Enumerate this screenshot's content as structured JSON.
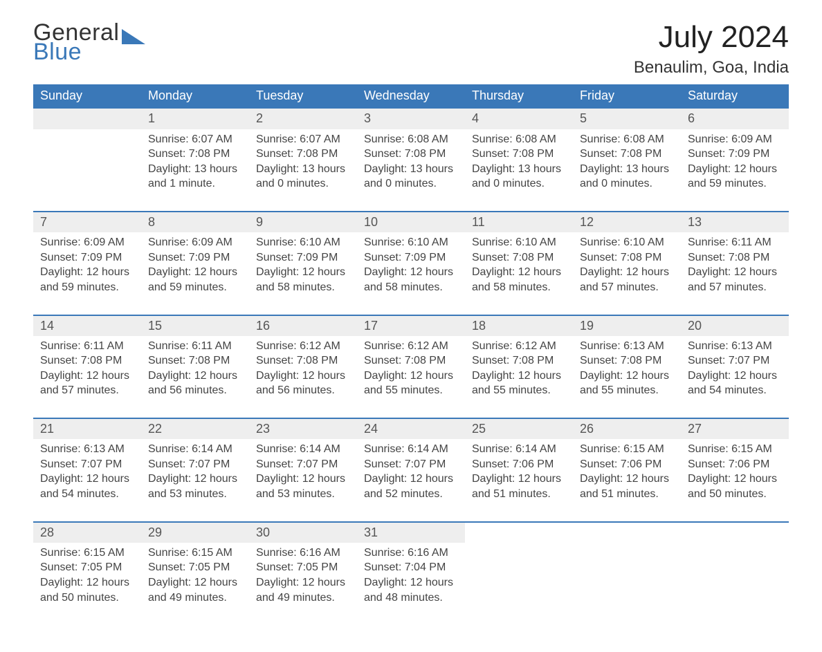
{
  "brand": {
    "word1": "General",
    "word2": "Blue",
    "accent_color": "#3a78b8"
  },
  "title": {
    "month": "July 2024",
    "location": "Benaulim, Goa, India"
  },
  "weekday_headers": [
    "Sunday",
    "Monday",
    "Tuesday",
    "Wednesday",
    "Thursday",
    "Friday",
    "Saturday"
  ],
  "colors": {
    "header_bg": "#3a78b8",
    "header_text": "#ffffff",
    "daynum_bg": "#eeeeee",
    "row_separator": "#3a78b8",
    "body_text": "#444444"
  },
  "layout": {
    "columns": 7,
    "rows": 5,
    "leading_blanks": 1
  },
  "days": [
    {
      "n": 1,
      "sunrise": "6:07 AM",
      "sunset": "7:08 PM",
      "daylight": "13 hours and 1 minute."
    },
    {
      "n": 2,
      "sunrise": "6:07 AM",
      "sunset": "7:08 PM",
      "daylight": "13 hours and 0 minutes."
    },
    {
      "n": 3,
      "sunrise": "6:08 AM",
      "sunset": "7:08 PM",
      "daylight": "13 hours and 0 minutes."
    },
    {
      "n": 4,
      "sunrise": "6:08 AM",
      "sunset": "7:08 PM",
      "daylight": "13 hours and 0 minutes."
    },
    {
      "n": 5,
      "sunrise": "6:08 AM",
      "sunset": "7:08 PM",
      "daylight": "13 hours and 0 minutes."
    },
    {
      "n": 6,
      "sunrise": "6:09 AM",
      "sunset": "7:09 PM",
      "daylight": "12 hours and 59 minutes."
    },
    {
      "n": 7,
      "sunrise": "6:09 AM",
      "sunset": "7:09 PM",
      "daylight": "12 hours and 59 minutes."
    },
    {
      "n": 8,
      "sunrise": "6:09 AM",
      "sunset": "7:09 PM",
      "daylight": "12 hours and 59 minutes."
    },
    {
      "n": 9,
      "sunrise": "6:10 AM",
      "sunset": "7:09 PM",
      "daylight": "12 hours and 58 minutes."
    },
    {
      "n": 10,
      "sunrise": "6:10 AM",
      "sunset": "7:09 PM",
      "daylight": "12 hours and 58 minutes."
    },
    {
      "n": 11,
      "sunrise": "6:10 AM",
      "sunset": "7:08 PM",
      "daylight": "12 hours and 58 minutes."
    },
    {
      "n": 12,
      "sunrise": "6:10 AM",
      "sunset": "7:08 PM",
      "daylight": "12 hours and 57 minutes."
    },
    {
      "n": 13,
      "sunrise": "6:11 AM",
      "sunset": "7:08 PM",
      "daylight": "12 hours and 57 minutes."
    },
    {
      "n": 14,
      "sunrise": "6:11 AM",
      "sunset": "7:08 PM",
      "daylight": "12 hours and 57 minutes."
    },
    {
      "n": 15,
      "sunrise": "6:11 AM",
      "sunset": "7:08 PM",
      "daylight": "12 hours and 56 minutes."
    },
    {
      "n": 16,
      "sunrise": "6:12 AM",
      "sunset": "7:08 PM",
      "daylight": "12 hours and 56 minutes."
    },
    {
      "n": 17,
      "sunrise": "6:12 AM",
      "sunset": "7:08 PM",
      "daylight": "12 hours and 55 minutes."
    },
    {
      "n": 18,
      "sunrise": "6:12 AM",
      "sunset": "7:08 PM",
      "daylight": "12 hours and 55 minutes."
    },
    {
      "n": 19,
      "sunrise": "6:13 AM",
      "sunset": "7:08 PM",
      "daylight": "12 hours and 55 minutes."
    },
    {
      "n": 20,
      "sunrise": "6:13 AM",
      "sunset": "7:07 PM",
      "daylight": "12 hours and 54 minutes."
    },
    {
      "n": 21,
      "sunrise": "6:13 AM",
      "sunset": "7:07 PM",
      "daylight": "12 hours and 54 minutes."
    },
    {
      "n": 22,
      "sunrise": "6:14 AM",
      "sunset": "7:07 PM",
      "daylight": "12 hours and 53 minutes."
    },
    {
      "n": 23,
      "sunrise": "6:14 AM",
      "sunset": "7:07 PM",
      "daylight": "12 hours and 53 minutes."
    },
    {
      "n": 24,
      "sunrise": "6:14 AM",
      "sunset": "7:07 PM",
      "daylight": "12 hours and 52 minutes."
    },
    {
      "n": 25,
      "sunrise": "6:14 AM",
      "sunset": "7:06 PM",
      "daylight": "12 hours and 51 minutes."
    },
    {
      "n": 26,
      "sunrise": "6:15 AM",
      "sunset": "7:06 PM",
      "daylight": "12 hours and 51 minutes."
    },
    {
      "n": 27,
      "sunrise": "6:15 AM",
      "sunset": "7:06 PM",
      "daylight": "12 hours and 50 minutes."
    },
    {
      "n": 28,
      "sunrise": "6:15 AM",
      "sunset": "7:05 PM",
      "daylight": "12 hours and 50 minutes."
    },
    {
      "n": 29,
      "sunrise": "6:15 AM",
      "sunset": "7:05 PM",
      "daylight": "12 hours and 49 minutes."
    },
    {
      "n": 30,
      "sunrise": "6:16 AM",
      "sunset": "7:05 PM",
      "daylight": "12 hours and 49 minutes."
    },
    {
      "n": 31,
      "sunrise": "6:16 AM",
      "sunset": "7:04 PM",
      "daylight": "12 hours and 48 minutes."
    }
  ],
  "labels": {
    "sunrise": "Sunrise: ",
    "sunset": "Sunset: ",
    "daylight": "Daylight: "
  }
}
